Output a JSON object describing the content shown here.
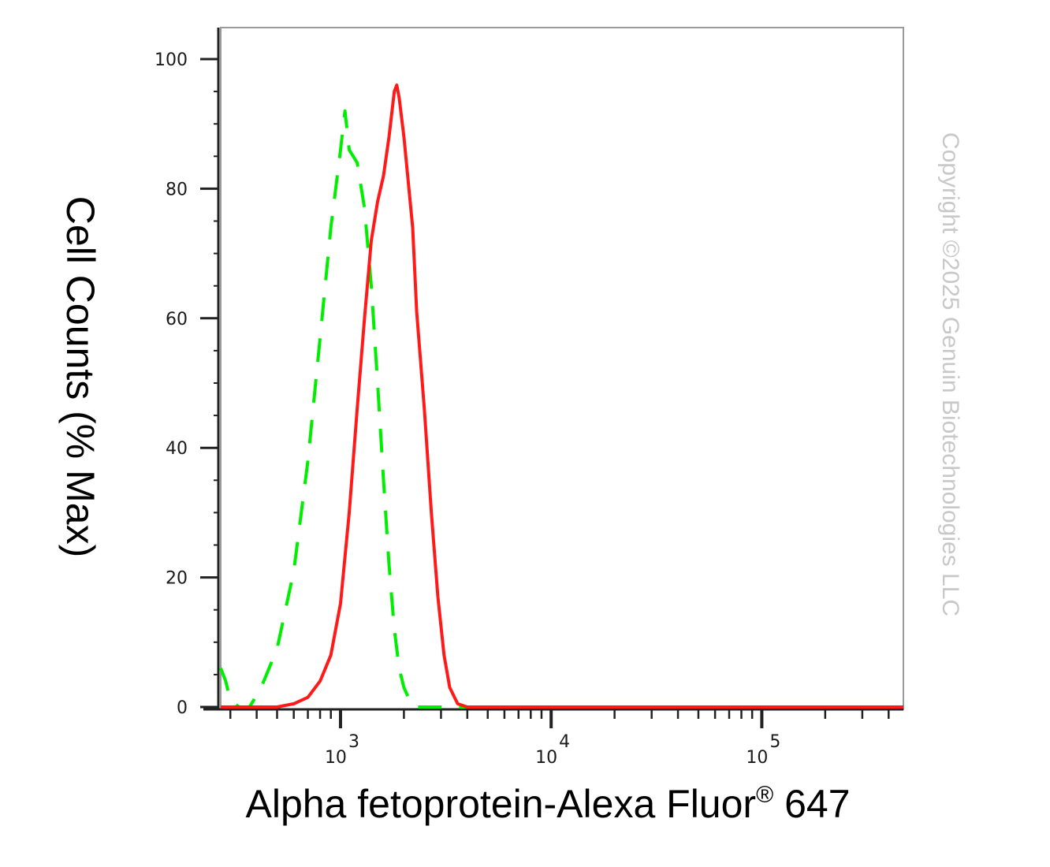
{
  "chart_data": {
    "type": "line",
    "xlabel": "Alpha fetoprotein-Alexa Fluor",
    "xlabel_superscript": "®",
    "xlabel_suffix": " 647",
    "ylabel": "Cell Counts (% Max)",
    "x_scale": "log",
    "xlim": [
      270,
      470000
    ],
    "ylim": [
      0,
      105
    ],
    "y_ticks": [
      0,
      20,
      40,
      60,
      80,
      100
    ],
    "y_tick_labels": [
      "0",
      "20",
      "40",
      "60",
      "80",
      "100"
    ],
    "x_major_ticks": [
      1000,
      10000,
      100000
    ],
    "x_tick_labels": [
      {
        "base": "10",
        "exp": "3"
      },
      {
        "base": "10",
        "exp": "4"
      },
      {
        "base": "10",
        "exp": "5"
      }
    ],
    "grid": false,
    "series": [
      {
        "color": "#00ee00",
        "dash": true,
        "points": [
          [
            270,
            6
          ],
          [
            285,
            4
          ],
          [
            300,
            1
          ],
          [
            330,
            0
          ],
          [
            370,
            0
          ],
          [
            420,
            3
          ],
          [
            500,
            9
          ],
          [
            600,
            21
          ],
          [
            700,
            38
          ],
          [
            800,
            57
          ],
          [
            900,
            74
          ],
          [
            1000,
            86
          ],
          [
            1050,
            92
          ],
          [
            1100,
            86
          ],
          [
            1200,
            84
          ],
          [
            1300,
            77
          ],
          [
            1400,
            65
          ],
          [
            1500,
            50
          ],
          [
            1600,
            35
          ],
          [
            1700,
            22
          ],
          [
            1800,
            12
          ],
          [
            1900,
            6
          ],
          [
            2000,
            3
          ],
          [
            2200,
            0
          ],
          [
            5000,
            0
          ],
          [
            20000,
            0
          ],
          [
            100000,
            0
          ],
          [
            470000,
            0
          ]
        ]
      },
      {
        "color": "#ff1a1a",
        "dash": false,
        "points": [
          [
            270,
            0
          ],
          [
            500,
            0
          ],
          [
            600,
            0.5
          ],
          [
            700,
            1.5
          ],
          [
            800,
            4
          ],
          [
            900,
            8
          ],
          [
            1000,
            16
          ],
          [
            1100,
            30
          ],
          [
            1200,
            46
          ],
          [
            1300,
            60
          ],
          [
            1400,
            72
          ],
          [
            1500,
            78
          ],
          [
            1600,
            82
          ],
          [
            1700,
            88
          ],
          [
            1800,
            95
          ],
          [
            1850,
            96
          ],
          [
            1900,
            94
          ],
          [
            2000,
            88
          ],
          [
            2200,
            74
          ],
          [
            2300,
            61
          ],
          [
            2500,
            46
          ],
          [
            2700,
            30
          ],
          [
            2900,
            17
          ],
          [
            3100,
            8
          ],
          [
            3300,
            3
          ],
          [
            3600,
            0.5
          ],
          [
            4000,
            0
          ],
          [
            10000,
            0
          ],
          [
            100000,
            0
          ],
          [
            470000,
            0
          ]
        ]
      }
    ]
  },
  "watermark": "Copyright ©2025 Genuin Biotechnologies LLC"
}
